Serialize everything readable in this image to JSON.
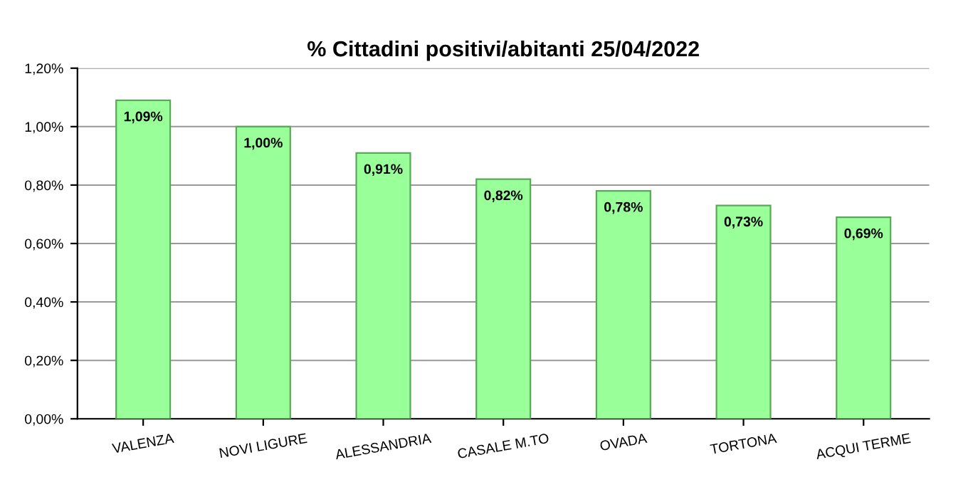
{
  "chart_data": {
    "type": "bar",
    "title": "% Cittadini positivi/abitanti 25/04/2022",
    "categories": [
      "VALENZA",
      "NOVI LIGURE",
      "ALESSANDRIA",
      "CASALE M.TO",
      "OVADA",
      "TORTONA",
      "ACQUI TERME"
    ],
    "values": [
      1.09,
      1.0,
      0.91,
      0.82,
      0.78,
      0.73,
      0.69
    ],
    "value_labels": [
      "1,09%",
      "1,00%",
      "0,91%",
      "0,82%",
      "0,78%",
      "0,73%",
      "0,69%"
    ],
    "color": "#99ff99",
    "ylim": [
      0,
      1.2
    ],
    "yticks": [
      {
        "value": 0,
        "label": "0,00%"
      },
      {
        "value": 0.2,
        "label": "0,20%"
      },
      {
        "value": 0.4,
        "label": "0,40%"
      },
      {
        "value": 0.6,
        "label": "0,60%"
      },
      {
        "value": 0.8,
        "label": "0,80%"
      },
      {
        "value": 1.0,
        "label": "1,00%"
      },
      {
        "value": 1.2,
        "label": "1,20%"
      }
    ],
    "grid": "y"
  }
}
